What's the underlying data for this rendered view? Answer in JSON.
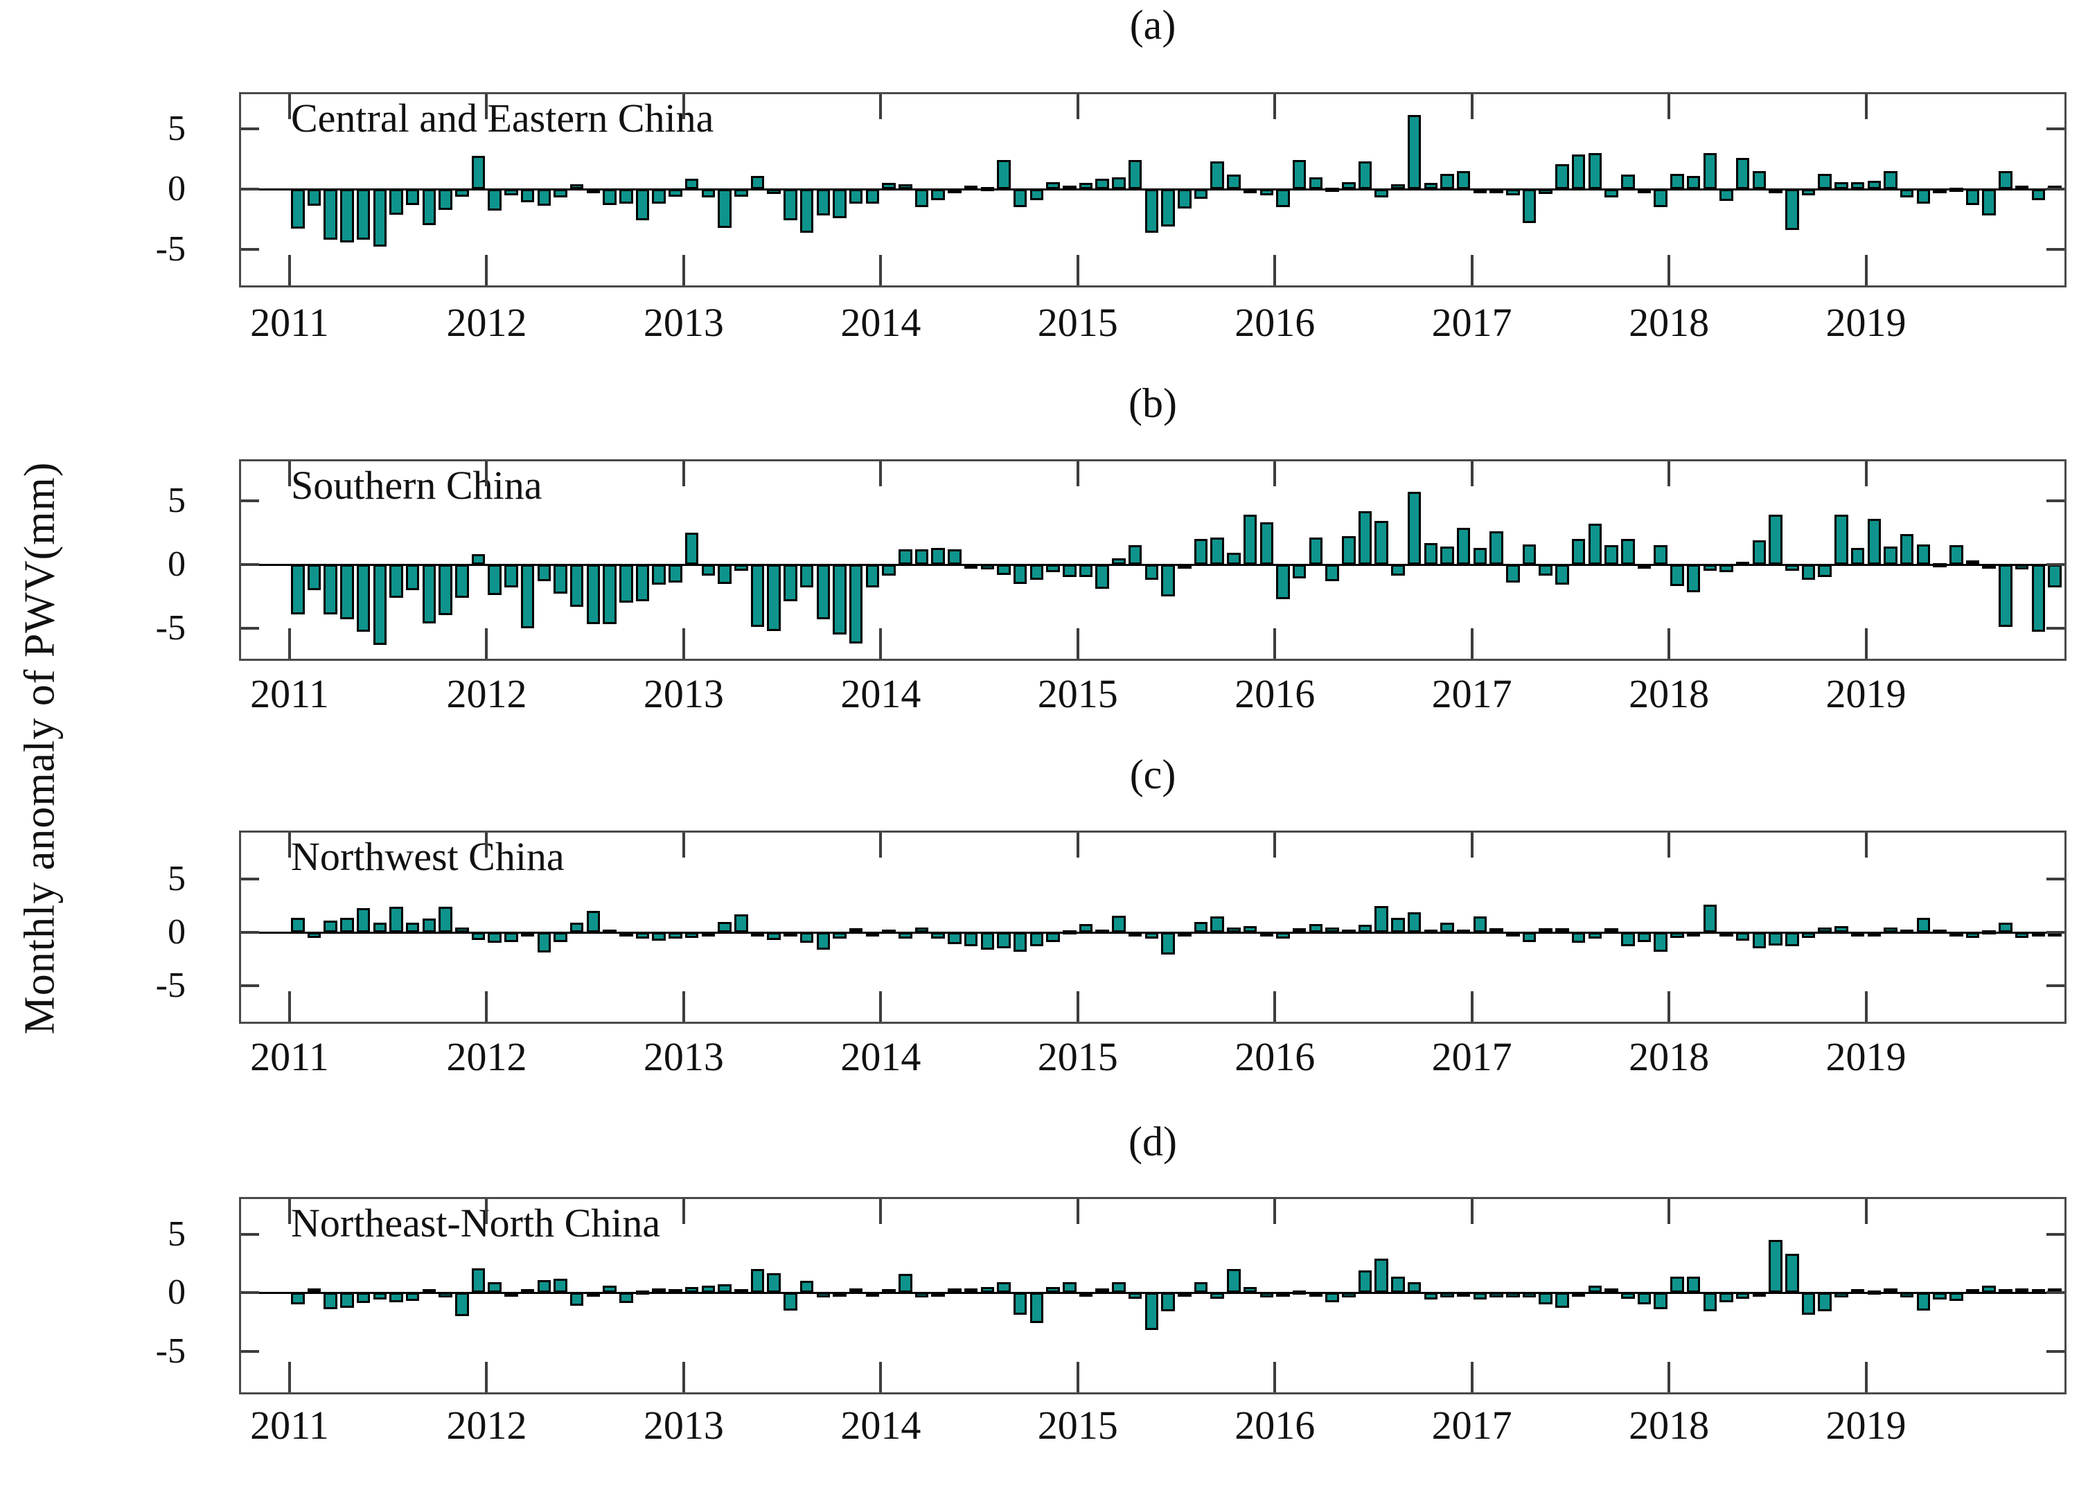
{
  "figure": {
    "y_axis_label": "Monthly anomaly of PWV(mm)",
    "background": "#ffffff"
  },
  "chart_data": {
    "type": "bar",
    "title": "",
    "xlabel": "",
    "ylabel": "Monthly anomaly of PWV(mm)",
    "x_start_year": 2011,
    "months_per_year": 12,
    "year_tick_labels": [
      "2011",
      "2012",
      "2013",
      "2014",
      "2015",
      "2016",
      "2017",
      "2018",
      "2019"
    ],
    "y_tick_labels": [
      "5",
      "0",
      "-5"
    ],
    "y_tick_values": [
      5,
      0,
      -5
    ],
    "grid": "off",
    "legend": "none",
    "bar_color": "#0E948C",
    "bar_border_color": "#000000",
    "axis_color": "#3d3d3d",
    "panels": [
      {
        "panel_label": "(a)",
        "region": "Central and Eastern China",
        "ylim": [
          -8.0,
          7.9
        ],
        "values": [
          -3.3,
          -1.4,
          -4.2,
          -4.4,
          -4.2,
          -4.8,
          -2.1,
          -1.3,
          -3.0,
          -1.7,
          -0.6,
          2.8,
          -1.8,
          -0.5,
          -1.1,
          -1.4,
          -0.7,
          0.4,
          -0.3,
          -1.3,
          -1.2,
          -2.6,
          -1.2,
          -0.6,
          0.9,
          -0.7,
          -3.2,
          -0.6,
          1.1,
          -0.4,
          -2.6,
          -3.6,
          -2.2,
          -2.4,
          -1.2,
          -1.2,
          0.5,
          0.4,
          -1.5,
          -0.9,
          -0.2,
          0.3,
          0.2,
          2.4,
          -1.5,
          -0.9,
          0.6,
          0.3,
          0.5,
          0.9,
          1.0,
          2.4,
          -3.6,
          -3.1,
          -1.6,
          -0.8,
          2.3,
          1.2,
          -0.3,
          -0.5,
          -1.5,
          2.4,
          1.0,
          0.1,
          0.6,
          2.3,
          -0.7,
          0.4,
          6.2,
          0.5,
          1.3,
          1.5,
          -0.3,
          -0.2,
          -0.5,
          -2.8,
          -0.4,
          2.1,
          2.9,
          3.0,
          -0.7,
          1.2,
          -0.2,
          -1.5,
          1.3,
          1.1,
          3.0,
          -1.0,
          2.6,
          1.5,
          -0.2,
          -3.4,
          -0.5,
          1.3,
          0.6,
          0.6,
          0.7,
          1.5,
          -0.7,
          -1.2,
          -0.1,
          0.1,
          -1.3,
          -2.2,
          1.5,
          0.3,
          -0.9,
          0.3
        ]
      },
      {
        "panel_label": "(b)",
        "region": "Southern China",
        "ylim": [
          -7.4,
          8.1
        ],
        "values": [
          -3.9,
          -2.0,
          -3.9,
          -4.3,
          -5.3,
          -6.3,
          -2.6,
          -2.0,
          -4.6,
          -4.0,
          -2.6,
          0.8,
          -2.4,
          -1.8,
          -5.0,
          -1.3,
          -2.3,
          -3.3,
          -4.7,
          -4.7,
          -3.0,
          -2.9,
          -1.6,
          -1.4,
          2.5,
          -0.9,
          -1.5,
          -0.5,
          -4.9,
          -5.2,
          -2.9,
          -1.8,
          -4.3,
          -5.5,
          -6.2,
          -1.8,
          -0.9,
          1.2,
          1.2,
          1.3,
          1.2,
          -0.3,
          -0.4,
          -0.8,
          -1.5,
          -1.2,
          -0.6,
          -1.0,
          -1.0,
          -1.9,
          0.5,
          1.5,
          -1.2,
          -2.5,
          -0.3,
          2.0,
          2.1,
          0.9,
          3.9,
          3.3,
          -2.7,
          -1.1,
          2.1,
          -1.3,
          2.2,
          4.2,
          3.4,
          -0.9,
          5.7,
          1.7,
          1.4,
          2.9,
          1.3,
          2.6,
          -1.4,
          1.6,
          -0.9,
          -1.6,
          2.0,
          3.2,
          1.5,
          2.0,
          -0.2,
          1.5,
          -1.7,
          -2.2,
          -0.5,
          -0.6,
          0.2,
          1.9,
          3.9,
          -0.5,
          -1.2,
          -1.0,
          3.9,
          1.3,
          3.6,
          1.4,
          2.4,
          1.6,
          0.1,
          1.5,
          0.3,
          -0.1,
          -4.9,
          -0.4,
          -5.3,
          -1.8
        ]
      },
      {
        "panel_label": "(c)",
        "region": "Northwest China",
        "ylim": [
          -8.4,
          9.4
        ],
        "values": [
          1.4,
          -0.5,
          1.1,
          1.4,
          2.3,
          0.9,
          2.4,
          0.9,
          1.3,
          2.4,
          0.5,
          -0.7,
          -1.0,
          -0.9,
          -0.4,
          -1.9,
          -0.9,
          0.9,
          2.0,
          0.3,
          -0.4,
          -0.6,
          -0.8,
          -0.6,
          -0.5,
          -0.3,
          1.0,
          1.7,
          -0.4,
          -0.7,
          -0.3,
          -1.0,
          -1.6,
          -0.6,
          0.4,
          -0.2,
          0.3,
          -0.6,
          0.5,
          -0.6,
          -1.1,
          -1.3,
          -1.6,
          -1.5,
          -1.8,
          -1.3,
          -0.9,
          0.2,
          0.8,
          0.3,
          1.6,
          -0.3,
          -0.6,
          -2.1,
          -0.4,
          1.0,
          1.5,
          0.5,
          0.6,
          -0.2,
          -0.6,
          0.4,
          0.8,
          0.5,
          0.3,
          0.7,
          2.5,
          1.4,
          1.9,
          0.3,
          0.9,
          0.3,
          1.5,
          0.4,
          -0.3,
          -0.9,
          0.4,
          0.4,
          -1.0,
          -0.6,
          0.4,
          -1.3,
          -0.9,
          -1.8,
          -0.5,
          -0.2,
          2.6,
          -0.4,
          -0.8,
          -1.5,
          -1.2,
          -1.3,
          -0.5,
          0.5,
          0.6,
          -0.3,
          -0.4,
          0.5,
          0.3,
          1.4,
          0.3,
          -0.2,
          -0.5,
          0.2,
          0.9,
          -0.5,
          -0.2,
          -0.3
        ]
      },
      {
        "panel_label": "(d)",
        "region": "Northeast-North China",
        "ylim": [
          -8.5,
          8.0
        ],
        "values": [
          -1.0,
          0.4,
          -1.4,
          -1.3,
          -0.9,
          -0.6,
          -0.8,
          -0.7,
          0.3,
          -0.4,
          -2.0,
          2.1,
          0.9,
          -0.2,
          0.3,
          1.1,
          1.2,
          -1.1,
          -0.3,
          0.6,
          -0.9,
          0.2,
          0.4,
          0.3,
          0.5,
          0.6,
          0.7,
          0.3,
          2.0,
          1.7,
          -1.5,
          1.0,
          -0.4,
          -0.3,
          0.4,
          -0.2,
          0.3,
          1.6,
          -0.4,
          -0.3,
          0.4,
          0.4,
          0.5,
          0.9,
          -1.9,
          -2.6,
          0.5,
          0.9,
          -0.3,
          0.4,
          0.9,
          -0.5,
          -3.2,
          -1.6,
          -0.2,
          0.9,
          -0.5,
          2.0,
          0.5,
          -0.4,
          -0.3,
          0.2,
          -0.2,
          -0.8,
          -0.4,
          1.9,
          2.9,
          1.4,
          0.9,
          -0.6,
          -0.4,
          -0.3,
          -0.6,
          -0.4,
          -0.4,
          -0.4,
          -1.0,
          -1.3,
          -0.2,
          0.6,
          0.4,
          -0.5,
          -1.0,
          -1.4,
          1.4,
          1.4,
          -1.6,
          -0.8,
          -0.5,
          -0.3,
          4.5,
          3.3,
          -1.9,
          -1.6,
          -0.4,
          0.3,
          0.2,
          0.4,
          -0.4,
          -1.5,
          -0.6,
          -0.7,
          0.3,
          0.6,
          0.3,
          0.4,
          0.3,
          0.4
        ]
      }
    ]
  }
}
